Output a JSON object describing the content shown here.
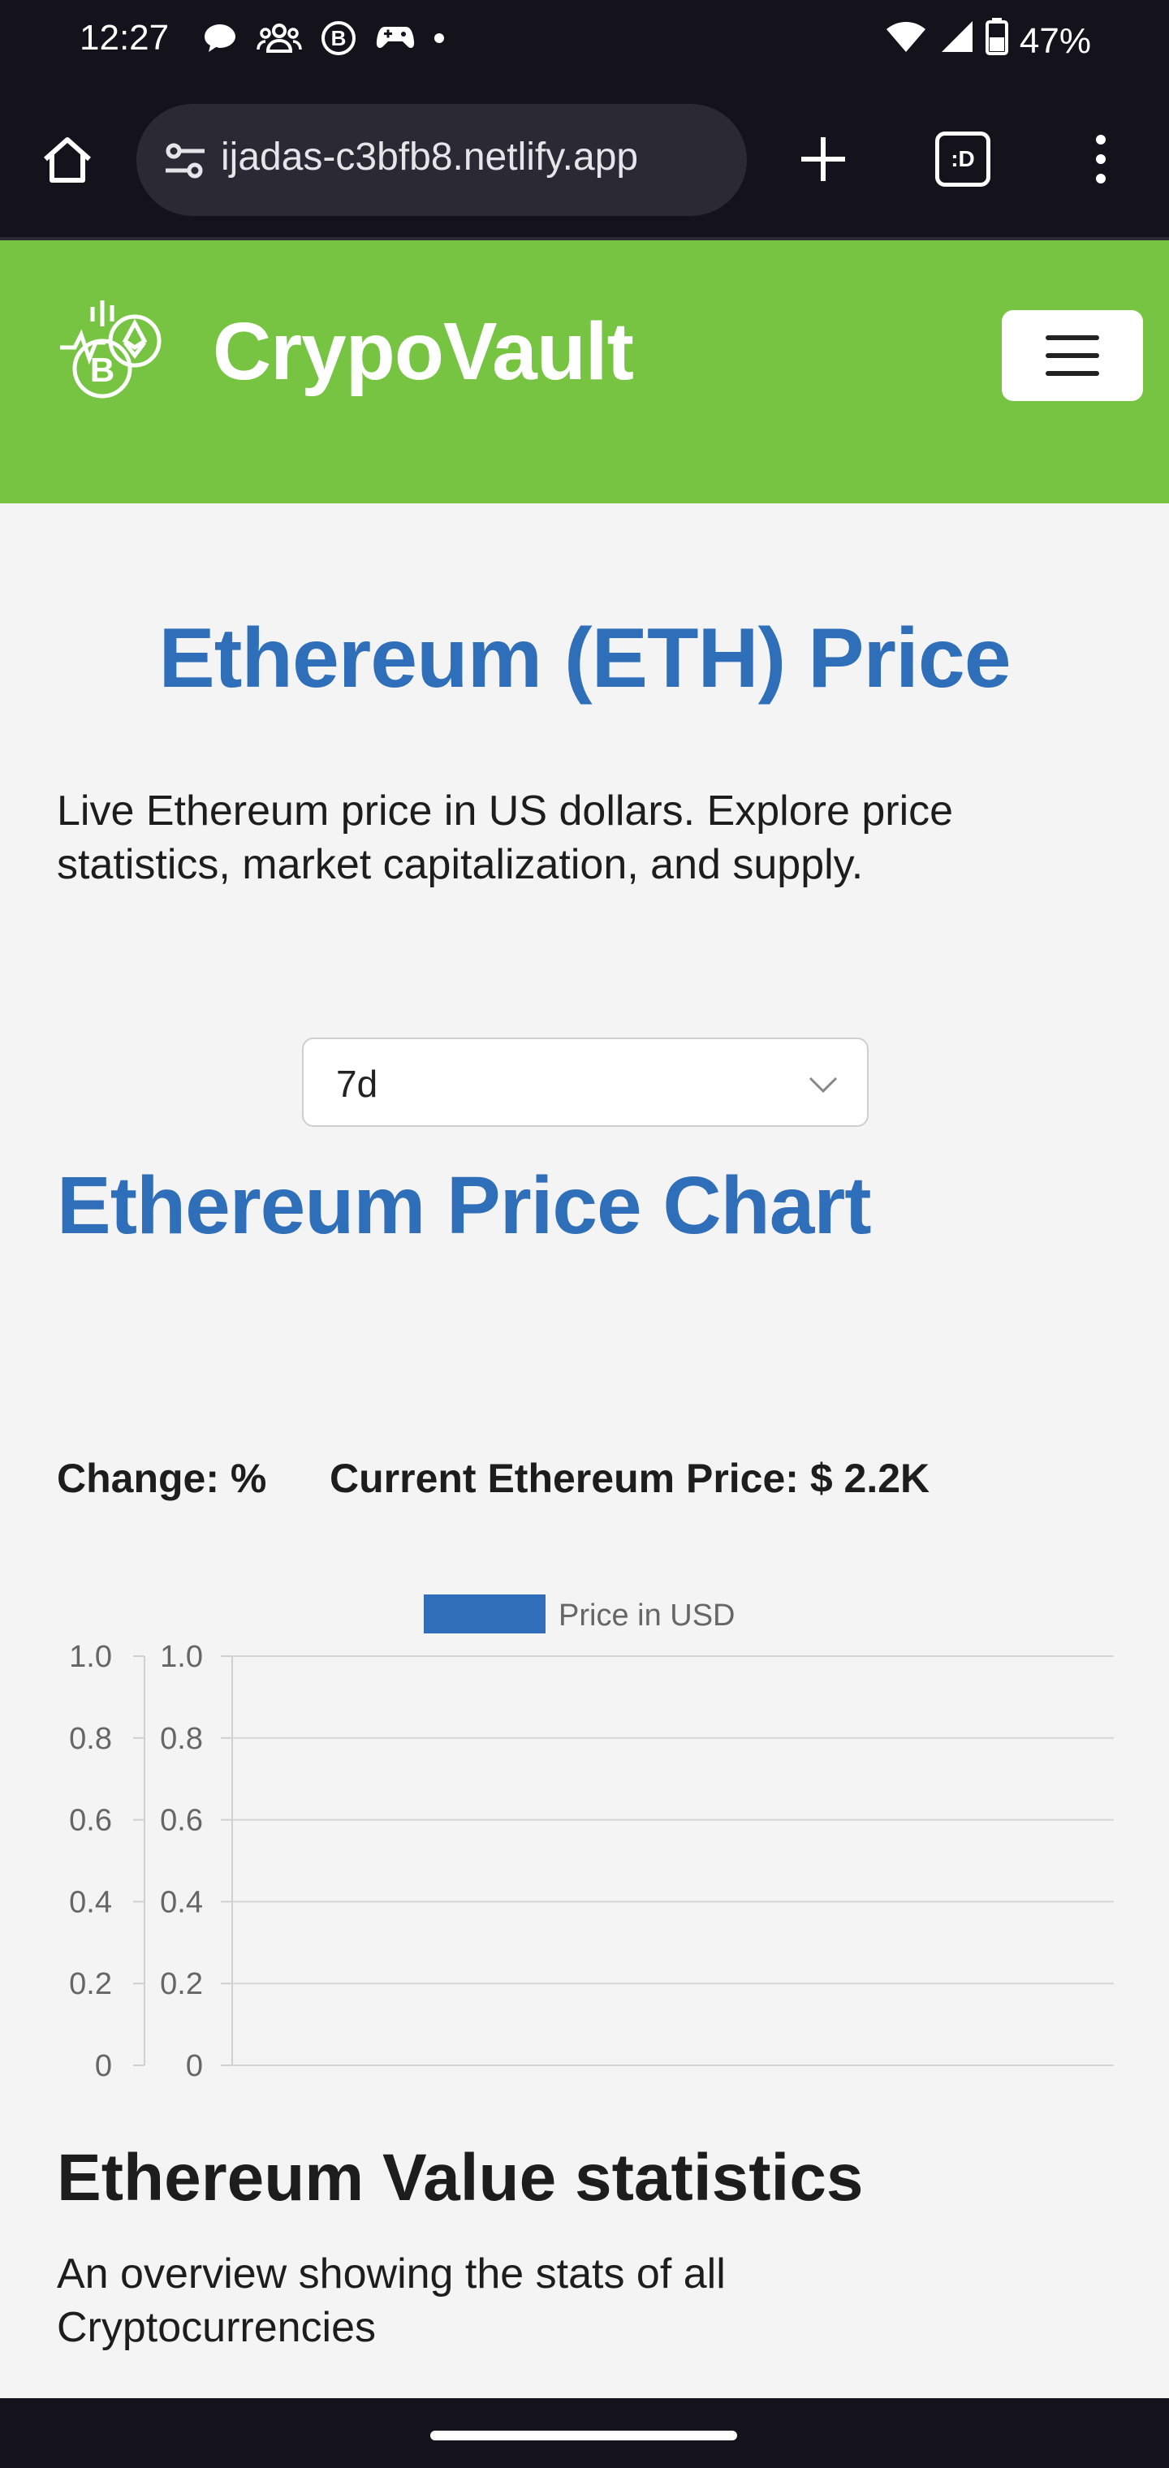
{
  "status_bar": {
    "time": "12:27",
    "battery": "47%",
    "left_icons": [
      "chat-bubble-icon",
      "group-icon",
      "b-circle-icon",
      "game-controller-icon",
      "dot-icon"
    ],
    "right_icons": [
      "wifi-icon",
      "signal-icon",
      "battery-icon"
    ]
  },
  "browser": {
    "url": "ijadas-c3bfb8.netlify.app",
    "tabs_label": ":D"
  },
  "navbar": {
    "brand": "CrypoVault",
    "accent": "#76c442"
  },
  "main": {
    "title": "Ethereum (ETH) Price",
    "intro": "Live Ethereum price in US dollars. Explore price statistics, market capitalization, and supply.",
    "range_select": {
      "value": "7d"
    },
    "chart_heading": "Ethereum Price Chart",
    "change_text": "Change: %",
    "current_price_text": "Current Ethereum Price: $ 2.2K",
    "title_color": "#2f6eb8"
  },
  "chart_data": {
    "type": "bar",
    "legend": [
      "Price in USD"
    ],
    "legend_color": "#2f6eb8",
    "legend_position": "top",
    "series": [
      {
        "name": "Price in USD",
        "values": []
      }
    ],
    "categories": [],
    "yaxes": [
      {
        "ticks": [
          "1.0",
          "0.8",
          "0.6",
          "0.4",
          "0.2",
          "0"
        ],
        "ylim": [
          0,
          1
        ]
      },
      {
        "ticks": [
          "1.0",
          "0.8",
          "0.6",
          "0.4",
          "0.2",
          "0"
        ],
        "ylim": [
          0,
          1
        ]
      }
    ],
    "grid": true
  },
  "stats": {
    "heading": "Ethereum Value statistics",
    "text": "An overview showing the stats of all Cryptocurrencies"
  }
}
